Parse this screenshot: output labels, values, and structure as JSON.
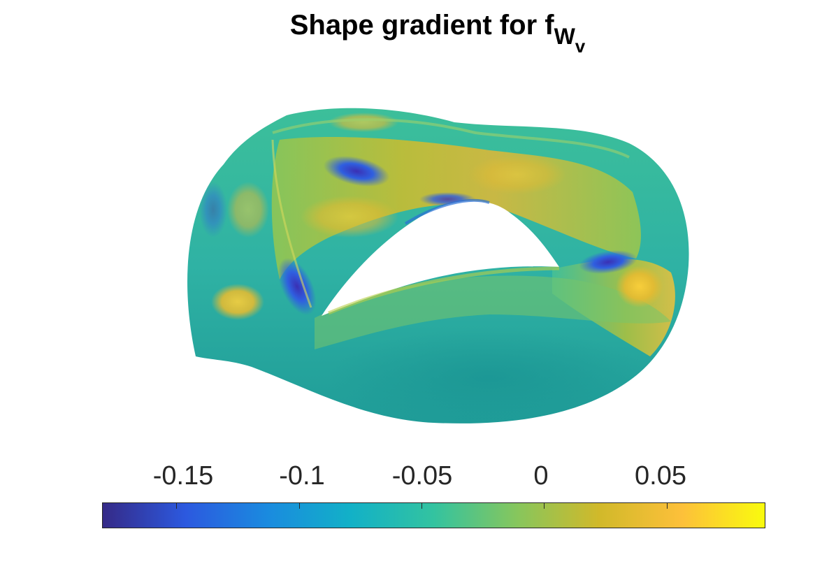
{
  "chart_data": {
    "type": "heatmap",
    "title": {
      "main": "Shape gradient for f",
      "subscript": "W",
      "subsubscript": "v"
    },
    "subject": "3D toroidal surface colored by shape gradient",
    "colorbar": {
      "location": "bottom",
      "range": [
        -0.18,
        0.09
      ],
      "ticks": [
        -0.15,
        -0.1,
        -0.05,
        0,
        0.05
      ],
      "tick_labels": [
        "-0.15",
        "-0.1",
        "-0.05",
        "0",
        "0.05"
      ],
      "colormap": "parula",
      "colormap_stops": [
        "#352a87",
        "#2c59df",
        "#1a8bdf",
        "#12b1c7",
        "#33c3a0",
        "#86c65d",
        "#d1b92a",
        "#fdc03a",
        "#f9fb0e"
      ]
    },
    "grid": false,
    "background": "#ffffff"
  }
}
